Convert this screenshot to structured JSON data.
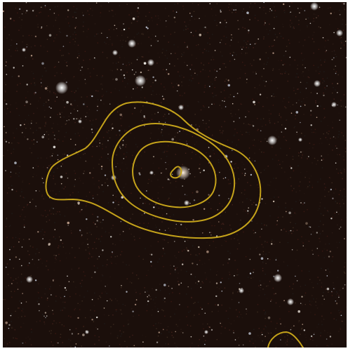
{
  "image": {
    "kind": "astronomical sky survey cutout",
    "background_color": "#1b0f0b",
    "contour_color": "#c4a21a",
    "star_color": "#e8e6e2"
  },
  "contours": {
    "levels": 4,
    "style": "nested closed contours around central source"
  }
}
